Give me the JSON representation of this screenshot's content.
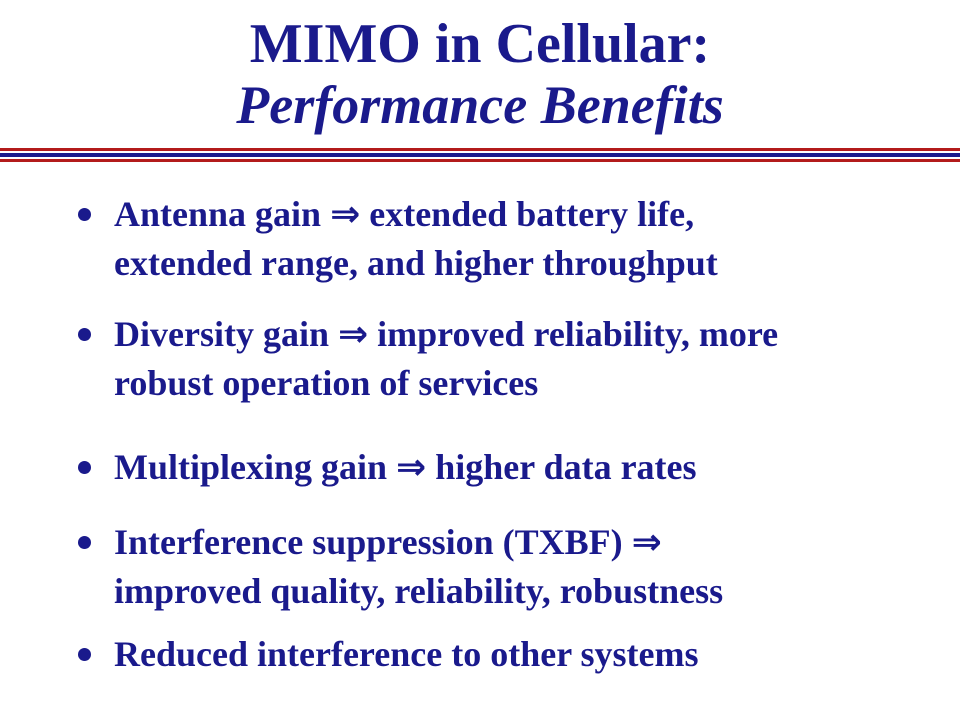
{
  "title": {
    "line1": "MIMO in Cellular:",
    "line2": "Performance Benefits"
  },
  "bullets": [
    {
      "lead": "Antenna gain",
      "arrow": "⇒",
      "rest1": " extended battery life,",
      "rest2": "extended range, and higher throughput"
    },
    {
      "lead": "Diversity gain",
      "arrow": "⇒",
      "rest1": " improved reliability, more",
      "rest2": "robust operation of services"
    },
    {
      "lead": "Multiplexing gain",
      "arrow": "⇒",
      "rest1": " higher data rates",
      "rest2": ""
    },
    {
      "lead": "Interference suppression (TXBF)",
      "arrow": "⇒",
      "rest1": "",
      "rest2": "improved quality, reliability, robustness"
    },
    {
      "lead": "Reduced interference to other systems",
      "arrow": "",
      "rest1": "",
      "rest2": ""
    }
  ],
  "colors": {
    "text": "#1a1a8c",
    "rule_red": "#b31b1b",
    "rule_blue": "#1a1a8c",
    "background": "#ffffff"
  }
}
